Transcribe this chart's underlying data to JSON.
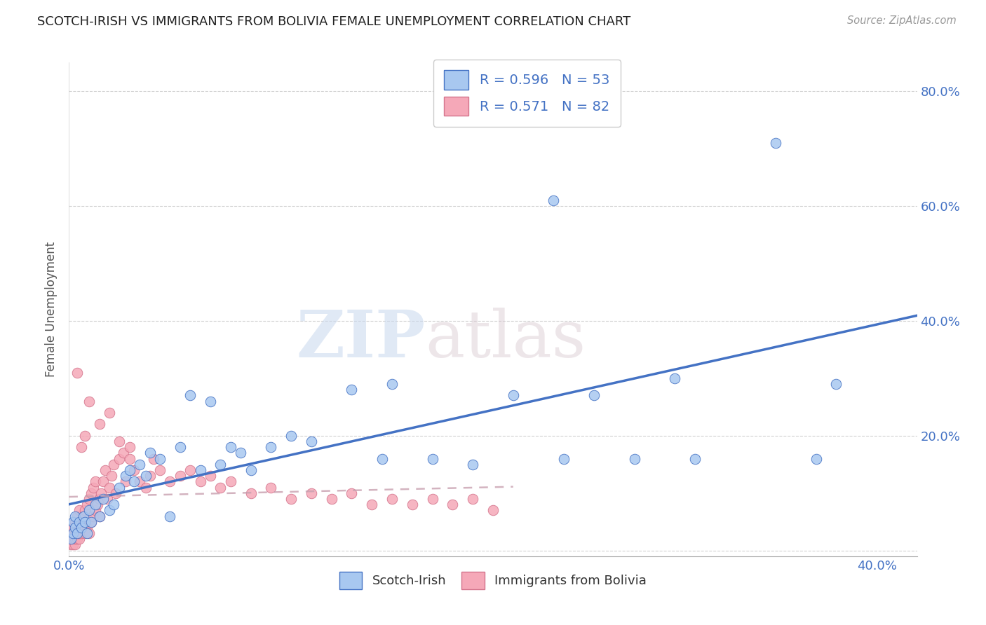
{
  "title": "SCOTCH-IRISH VS IMMIGRANTS FROM BOLIVIA FEMALE UNEMPLOYMENT CORRELATION CHART",
  "source": "Source: ZipAtlas.com",
  "ylabel": "Female Unemployment",
  "xlim": [
    0.0,
    0.42
  ],
  "ylim": [
    -0.01,
    0.85
  ],
  "color_scotch": "#a8c8f0",
  "color_bolivia": "#f5a8b8",
  "line_color_scotch": "#4472c4",
  "line_color_bolivia": "#d4748c",
  "background_color": "#ffffff",
  "watermark_zip": "ZIP",
  "watermark_atlas": "atlas",
  "scotch_x": [
    0.001,
    0.002,
    0.002,
    0.003,
    0.003,
    0.004,
    0.005,
    0.006,
    0.007,
    0.008,
    0.009,
    0.01,
    0.011,
    0.013,
    0.015,
    0.017,
    0.02,
    0.022,
    0.025,
    0.028,
    0.03,
    0.032,
    0.035,
    0.038,
    0.04,
    0.045,
    0.05,
    0.055,
    0.06,
    0.065,
    0.07,
    0.075,
    0.08,
    0.085,
    0.09,
    0.1,
    0.11,
    0.12,
    0.14,
    0.155,
    0.16,
    0.18,
    0.2,
    0.22,
    0.24,
    0.245,
    0.26,
    0.28,
    0.3,
    0.31,
    0.35,
    0.37,
    0.38
  ],
  "scotch_y": [
    0.02,
    0.03,
    0.05,
    0.04,
    0.06,
    0.03,
    0.05,
    0.04,
    0.06,
    0.05,
    0.03,
    0.07,
    0.05,
    0.08,
    0.06,
    0.09,
    0.07,
    0.08,
    0.11,
    0.13,
    0.14,
    0.12,
    0.15,
    0.13,
    0.17,
    0.16,
    0.06,
    0.18,
    0.27,
    0.14,
    0.26,
    0.15,
    0.18,
    0.17,
    0.14,
    0.18,
    0.2,
    0.19,
    0.28,
    0.16,
    0.29,
    0.16,
    0.15,
    0.27,
    0.61,
    0.16,
    0.27,
    0.16,
    0.3,
    0.16,
    0.71,
    0.16,
    0.29
  ],
  "bolivia_x": [
    0.001,
    0.001,
    0.001,
    0.002,
    0.002,
    0.002,
    0.002,
    0.003,
    0.003,
    0.003,
    0.003,
    0.004,
    0.004,
    0.004,
    0.005,
    0.005,
    0.005,
    0.006,
    0.006,
    0.007,
    0.007,
    0.008,
    0.008,
    0.009,
    0.009,
    0.01,
    0.01,
    0.011,
    0.011,
    0.012,
    0.012,
    0.013,
    0.013,
    0.014,
    0.015,
    0.015,
    0.016,
    0.017,
    0.018,
    0.019,
    0.02,
    0.021,
    0.022,
    0.023,
    0.025,
    0.027,
    0.028,
    0.03,
    0.032,
    0.035,
    0.038,
    0.04,
    0.042,
    0.045,
    0.05,
    0.055,
    0.06,
    0.065,
    0.07,
    0.075,
    0.08,
    0.09,
    0.1,
    0.11,
    0.12,
    0.13,
    0.14,
    0.15,
    0.16,
    0.17,
    0.18,
    0.19,
    0.2,
    0.21,
    0.01,
    0.004,
    0.006,
    0.008,
    0.015,
    0.02,
    0.025,
    0.03
  ],
  "bolivia_y": [
    0.01,
    0.02,
    0.03,
    0.01,
    0.02,
    0.03,
    0.04,
    0.01,
    0.02,
    0.03,
    0.05,
    0.02,
    0.03,
    0.06,
    0.02,
    0.03,
    0.07,
    0.03,
    0.05,
    0.04,
    0.06,
    0.03,
    0.07,
    0.04,
    0.08,
    0.03,
    0.09,
    0.05,
    0.1,
    0.06,
    0.11,
    0.07,
    0.12,
    0.08,
    0.06,
    0.09,
    0.1,
    0.12,
    0.14,
    0.09,
    0.11,
    0.13,
    0.15,
    0.1,
    0.16,
    0.17,
    0.12,
    0.18,
    0.14,
    0.12,
    0.11,
    0.13,
    0.16,
    0.14,
    0.12,
    0.13,
    0.14,
    0.12,
    0.13,
    0.11,
    0.12,
    0.1,
    0.11,
    0.09,
    0.1,
    0.09,
    0.1,
    0.08,
    0.09,
    0.08,
    0.09,
    0.08,
    0.09,
    0.07,
    0.26,
    0.31,
    0.18,
    0.2,
    0.22,
    0.24,
    0.19,
    0.16
  ]
}
